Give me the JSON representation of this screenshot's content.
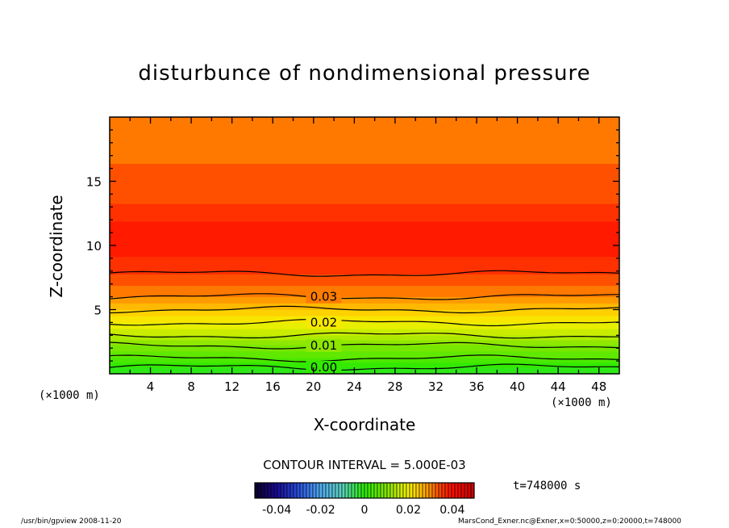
{
  "chart_data": {
    "type": "contour",
    "title": "disturbunce of nondimensional pressure",
    "xlabel": "X-coordinate",
    "ylabel": "Z-coordinate",
    "x_unit": "(×1000 m)",
    "y_unit": "(×1000 m)",
    "xlim": [
      0,
      50
    ],
    "ylim": [
      0,
      20
    ],
    "x_ticks": [
      4,
      8,
      12,
      16,
      20,
      24,
      28,
      32,
      36,
      40,
      44,
      48
    ],
    "y_ticks": [
      5,
      10,
      15
    ],
    "profile": [
      {
        "z": 0.0,
        "value": -0.002
      },
      {
        "z": 0.5,
        "value": 0.0
      },
      {
        "z": 1.2,
        "value": 0.005
      },
      {
        "z": 2.2,
        "value": 0.01
      },
      {
        "z": 3.0,
        "value": 0.015
      },
      {
        "z": 4.0,
        "value": 0.02
      },
      {
        "z": 5.0,
        "value": 0.025
      },
      {
        "z": 6.0,
        "value": 0.03
      },
      {
        "z": 7.8,
        "value": 0.035
      },
      {
        "z": 10.5,
        "value": 0.04
      },
      {
        "z": 13.3,
        "value": 0.035
      },
      {
        "z": 17.0,
        "value": 0.032
      },
      {
        "z": 20.0,
        "value": 0.03
      }
    ],
    "contour_levels": [
      0.0,
      0.005,
      0.01,
      0.015,
      0.02,
      0.025,
      0.03,
      0.035
    ],
    "contour_labels": [
      {
        "level": 0.0,
        "text": "0.00"
      },
      {
        "level": 0.01,
        "text": "0.01"
      },
      {
        "level": 0.02,
        "text": "0.02"
      },
      {
        "level": 0.03,
        "text": "0.03"
      }
    ],
    "contour_interval_text": "CONTOUR INTERVAL = 5.000E-03",
    "colorbar": {
      "range": [
        -0.05,
        0.05
      ],
      "tick_values": [
        -0.04,
        -0.02,
        0,
        0.02,
        0.04
      ],
      "tick_labels": [
        "-0.04",
        "-0.02",
        "0",
        "0.02",
        "0.04"
      ]
    }
  },
  "time_label": "t=748000 s",
  "footer_left": "/usr/bin/gpview   2008-11-20",
  "footer_right": "MarsCond_Exner.nc@Exner,x=0:50000,z=0:20000,t=748000"
}
